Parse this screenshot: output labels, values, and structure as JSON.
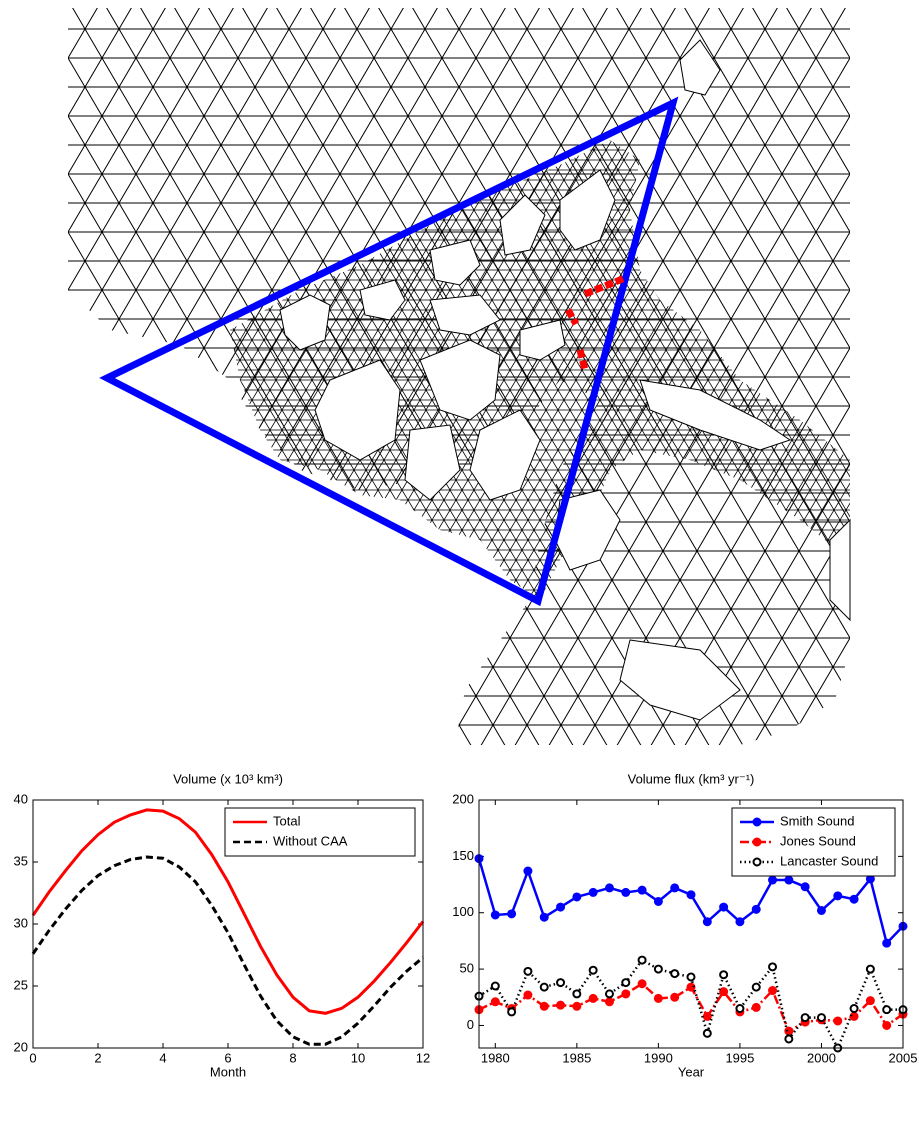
{
  "chart_data": [
    {
      "type": "line",
      "title": "Volume (x 10³ km³)",
      "x_label": "Month",
      "x": [
        0,
        0.5,
        1,
        1.5,
        2,
        2.5,
        3,
        3.5,
        4,
        4.5,
        5,
        5.5,
        6,
        6.5,
        7,
        7.5,
        8,
        8.5,
        9,
        9.5,
        10,
        10.5,
        11,
        11.5,
        12
      ],
      "series": [
        {
          "name": "Total",
          "color": "#ff0000",
          "line_style": "solid",
          "values": [
            30.7,
            32.6,
            34.3,
            35.9,
            37.2,
            38.2,
            38.8,
            39.2,
            39.1,
            38.5,
            37.4,
            35.6,
            33.4,
            30.8,
            28.2,
            25.9,
            24.1,
            23.0,
            22.8,
            23.2,
            24.1,
            25.4,
            26.9,
            28.5,
            30.2
          ]
        },
        {
          "name": "Without CAA",
          "color": "#000000",
          "line_style": "dashed",
          "values": [
            27.6,
            29.5,
            31.2,
            32.7,
            33.9,
            34.7,
            35.2,
            35.4,
            35.3,
            34.6,
            33.4,
            31.5,
            29.3,
            26.7,
            24.2,
            22.2,
            20.9,
            20.3,
            20.3,
            20.9,
            22.0,
            23.4,
            24.9,
            26.2,
            27.3
          ]
        }
      ],
      "xlim": [
        0,
        12
      ],
      "xticks": [
        0,
        2,
        4,
        6,
        8,
        10,
        12
      ],
      "ylim": [
        20,
        40
      ],
      "yticks": [
        20,
        25,
        30,
        35,
        40
      ],
      "legend": "upper right"
    },
    {
      "type": "line",
      "title": "Volume flux (km³ yr⁻¹)",
      "x_label": "Year",
      "x": [
        1979,
        1980,
        1981,
        1982,
        1983,
        1984,
        1985,
        1986,
        1987,
        1988,
        1989,
        1990,
        1991,
        1992,
        1993,
        1994,
        1995,
        1996,
        1997,
        1998,
        1999,
        2000,
        2001,
        2002,
        2003,
        2004,
        2005
      ],
      "series": [
        {
          "name": "Smith Sound",
          "color": "#0000ff",
          "line_style": "solid",
          "marker": "filled",
          "values": [
            148,
            98,
            99,
            137,
            96,
            105,
            114,
            118,
            122,
            118,
            120,
            110,
            122,
            116,
            92,
            105,
            92,
            103,
            129,
            129,
            123,
            102,
            115,
            112,
            130,
            73,
            88
          ]
        },
        {
          "name": "Jones Sound",
          "color": "#ff0000",
          "line_style": "dashdot",
          "marker": "filled",
          "values": [
            14,
            21,
            15,
            27,
            17,
            18,
            17,
            24,
            21,
            28,
            37,
            24,
            25,
            34,
            8,
            30,
            12,
            16,
            31,
            -5,
            3,
            5,
            4,
            8,
            22,
            0,
            10
          ]
        },
        {
          "name": "Lancaster Sound",
          "color": "#000000",
          "line_style": "dotted",
          "marker": "open",
          "values": [
            26,
            35,
            12,
            48,
            34,
            38,
            28,
            49,
            28,
            38,
            58,
            50,
            46,
            43,
            -7,
            45,
            15,
            34,
            52,
            -12,
            7,
            7,
            -20,
            15,
            50,
            14,
            14
          ]
        }
      ],
      "xlim": [
        1979,
        2005
      ],
      "xticks": [
        1980,
        1985,
        1990,
        1995,
        2000,
        2005
      ],
      "ylim": [
        -20,
        200
      ],
      "yticks": [
        0,
        50,
        100,
        150,
        200
      ],
      "legend": "upper right"
    }
  ]
}
